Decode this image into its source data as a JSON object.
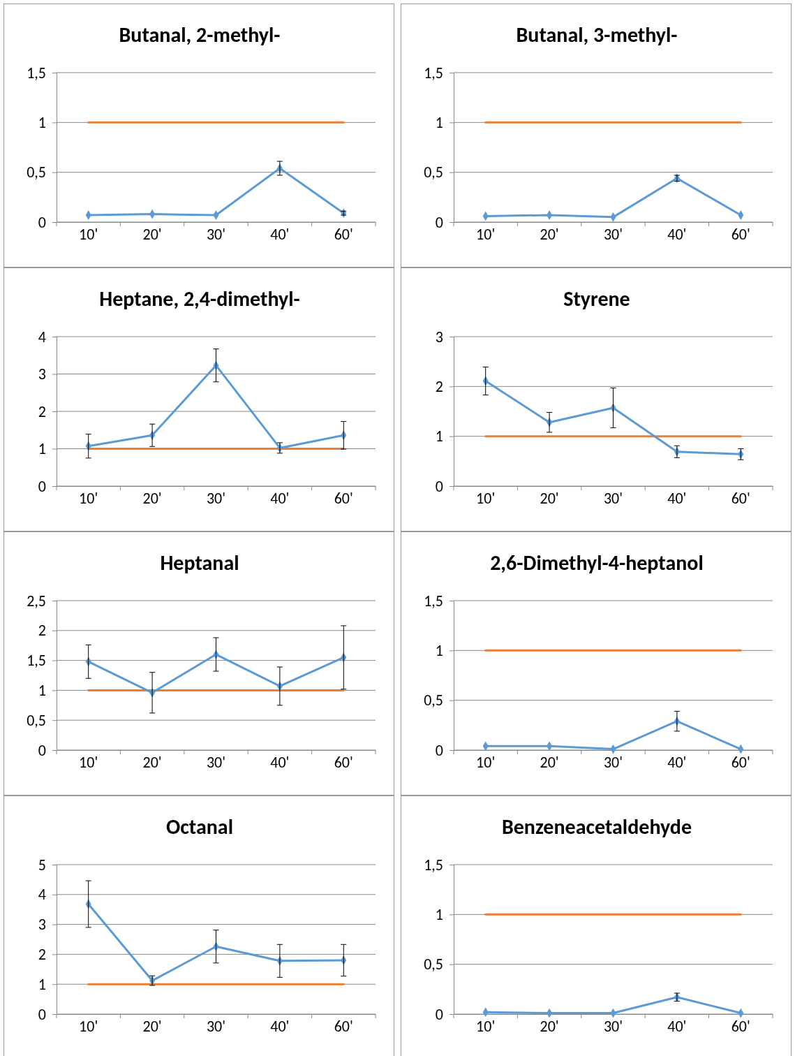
{
  "chart_data": [
    {
      "type": "line",
      "title": "Butanal, 2-methyl-",
      "categories": [
        "10'",
        "20'",
        "30'",
        "40'",
        "60'"
      ],
      "ylim": [
        0,
        1.5
      ],
      "yticks": [
        0,
        {
          "value": 0.5,
          "label": "0,5"
        },
        1,
        {
          "value": 1.5,
          "label": "1,5"
        }
      ],
      "grid": "y",
      "marker": "diamond",
      "series": [
        {
          "color": "#5b9bd5",
          "values": [
            0.07,
            0.08,
            0.07,
            0.54,
            0.09
          ],
          "errors": [
            null,
            null,
            null,
            0.07,
            0.02
          ]
        },
        {
          "color": "#ed7d31",
          "values": [
            1,
            1,
            1,
            1,
            1
          ],
          "marker": "none"
        }
      ]
    },
    {
      "type": "line",
      "title": "Butanal, 3-methyl-",
      "categories": [
        "10'",
        "20'",
        "30'",
        "40'",
        "60'"
      ],
      "ylim": [
        0,
        1.5
      ],
      "yticks": [
        0,
        {
          "value": 0.5,
          "label": "0,5"
        },
        1,
        {
          "value": 1.5,
          "label": "1,5"
        }
      ],
      "grid": "y",
      "marker": "diamond",
      "series": [
        {
          "color": "#5b9bd5",
          "values": [
            0.06,
            0.07,
            0.05,
            0.44,
            0.07
          ],
          "errors": [
            null,
            null,
            null,
            0.03,
            null
          ]
        },
        {
          "color": "#ed7d31",
          "values": [
            1,
            1,
            1,
            1,
            1
          ],
          "marker": "none"
        }
      ]
    },
    {
      "type": "line",
      "title": "Heptane, 2,4-dimethyl-",
      "categories": [
        "10'",
        "20'",
        "30'",
        "40'",
        "60'"
      ],
      "ylim": [
        0,
        4
      ],
      "yticks": [
        0,
        1,
        2,
        3,
        4
      ],
      "grid": "y",
      "marker": "diamond",
      "series": [
        {
          "color": "#5b9bd5",
          "values": [
            1.07,
            1.36,
            3.23,
            1.02,
            1.36
          ],
          "errors": [
            0.32,
            0.3,
            0.44,
            0.14,
            0.37
          ]
        },
        {
          "color": "#ed7d31",
          "values": [
            1,
            1,
            1,
            1,
            1
          ],
          "marker": "none"
        }
      ]
    },
    {
      "type": "line",
      "title": "Styrene",
      "categories": [
        "10'",
        "20'",
        "30'",
        "40'",
        "60'"
      ],
      "ylim": [
        0,
        3
      ],
      "yticks": [
        0,
        1,
        2,
        3
      ],
      "grid": "y",
      "marker": "diamond",
      "series": [
        {
          "color": "#5b9bd5",
          "values": [
            2.11,
            1.28,
            1.57,
            0.69,
            0.64
          ],
          "errors": [
            0.28,
            0.2,
            0.4,
            0.12,
            0.11
          ]
        },
        {
          "color": "#ed7d31",
          "values": [
            1,
            1,
            1,
            1,
            1
          ],
          "marker": "none"
        }
      ]
    },
    {
      "type": "line",
      "title": "Heptanal",
      "categories": [
        "10'",
        "20'",
        "30'",
        "40'",
        "60'"
      ],
      "ylim": [
        0,
        2.5
      ],
      "yticks": [
        0,
        {
          "value": 0.5,
          "label": "0,5"
        },
        1,
        {
          "value": 1.5,
          "label": "1,5"
        },
        2,
        {
          "value": 2.5,
          "label": "2,5"
        }
      ],
      "grid": "y",
      "marker": "diamond",
      "series": [
        {
          "color": "#5b9bd5",
          "values": [
            1.48,
            0.96,
            1.6,
            1.07,
            1.55
          ],
          "errors": [
            0.28,
            0.34,
            0.28,
            0.32,
            0.53
          ]
        },
        {
          "color": "#ed7d31",
          "values": [
            1,
            1,
            1,
            1,
            1
          ],
          "marker": "none"
        }
      ]
    },
    {
      "type": "line",
      "title": "2,6-Dimethyl-4-heptanol",
      "categories": [
        "10'",
        "20'",
        "30'",
        "40'",
        "60'"
      ],
      "ylim": [
        0,
        1.5
      ],
      "yticks": [
        0,
        {
          "value": 0.5,
          "label": "0,5"
        },
        1,
        {
          "value": 1.5,
          "label": "1,5"
        }
      ],
      "grid": "y",
      "marker": "diamond",
      "series": [
        {
          "color": "#5b9bd5",
          "values": [
            0.04,
            0.04,
            0.01,
            0.29,
            0.01
          ],
          "errors": [
            null,
            null,
            null,
            0.1,
            null
          ]
        },
        {
          "color": "#ed7d31",
          "values": [
            1,
            1,
            1,
            1,
            1
          ],
          "marker": "none"
        }
      ]
    },
    {
      "type": "line",
      "title": "Octanal",
      "categories": [
        "10'",
        "20'",
        "30'",
        "40'",
        "60'"
      ],
      "ylim": [
        0,
        5
      ],
      "yticks": [
        0,
        1,
        2,
        3,
        4,
        5
      ],
      "grid": "y",
      "marker": "diamond",
      "series": [
        {
          "color": "#5b9bd5",
          "values": [
            3.68,
            1.12,
            2.26,
            1.78,
            1.8
          ],
          "errors": [
            0.78,
            0.16,
            0.55,
            0.55,
            0.53
          ]
        },
        {
          "color": "#ed7d31",
          "values": [
            1,
            1,
            1,
            1,
            1
          ],
          "marker": "none"
        }
      ]
    },
    {
      "type": "line",
      "title": "Benzeneacetaldehyde",
      "categories": [
        "10'",
        "20'",
        "30'",
        "40'",
        "60'"
      ],
      "ylim": [
        0,
        1.5
      ],
      "yticks": [
        0,
        {
          "value": 0.5,
          "label": "0,5"
        },
        1,
        {
          "value": 1.5,
          "label": "1,5"
        }
      ],
      "grid": "y",
      "marker": "diamond",
      "series": [
        {
          "color": "#5b9bd5",
          "values": [
            0.02,
            0.01,
            0.01,
            0.17,
            0.01
          ],
          "errors": [
            null,
            null,
            null,
            0.04,
            null
          ]
        },
        {
          "color": "#ed7d31",
          "values": [
            1,
            1,
            1,
            1,
            1
          ],
          "marker": "none"
        }
      ]
    }
  ]
}
